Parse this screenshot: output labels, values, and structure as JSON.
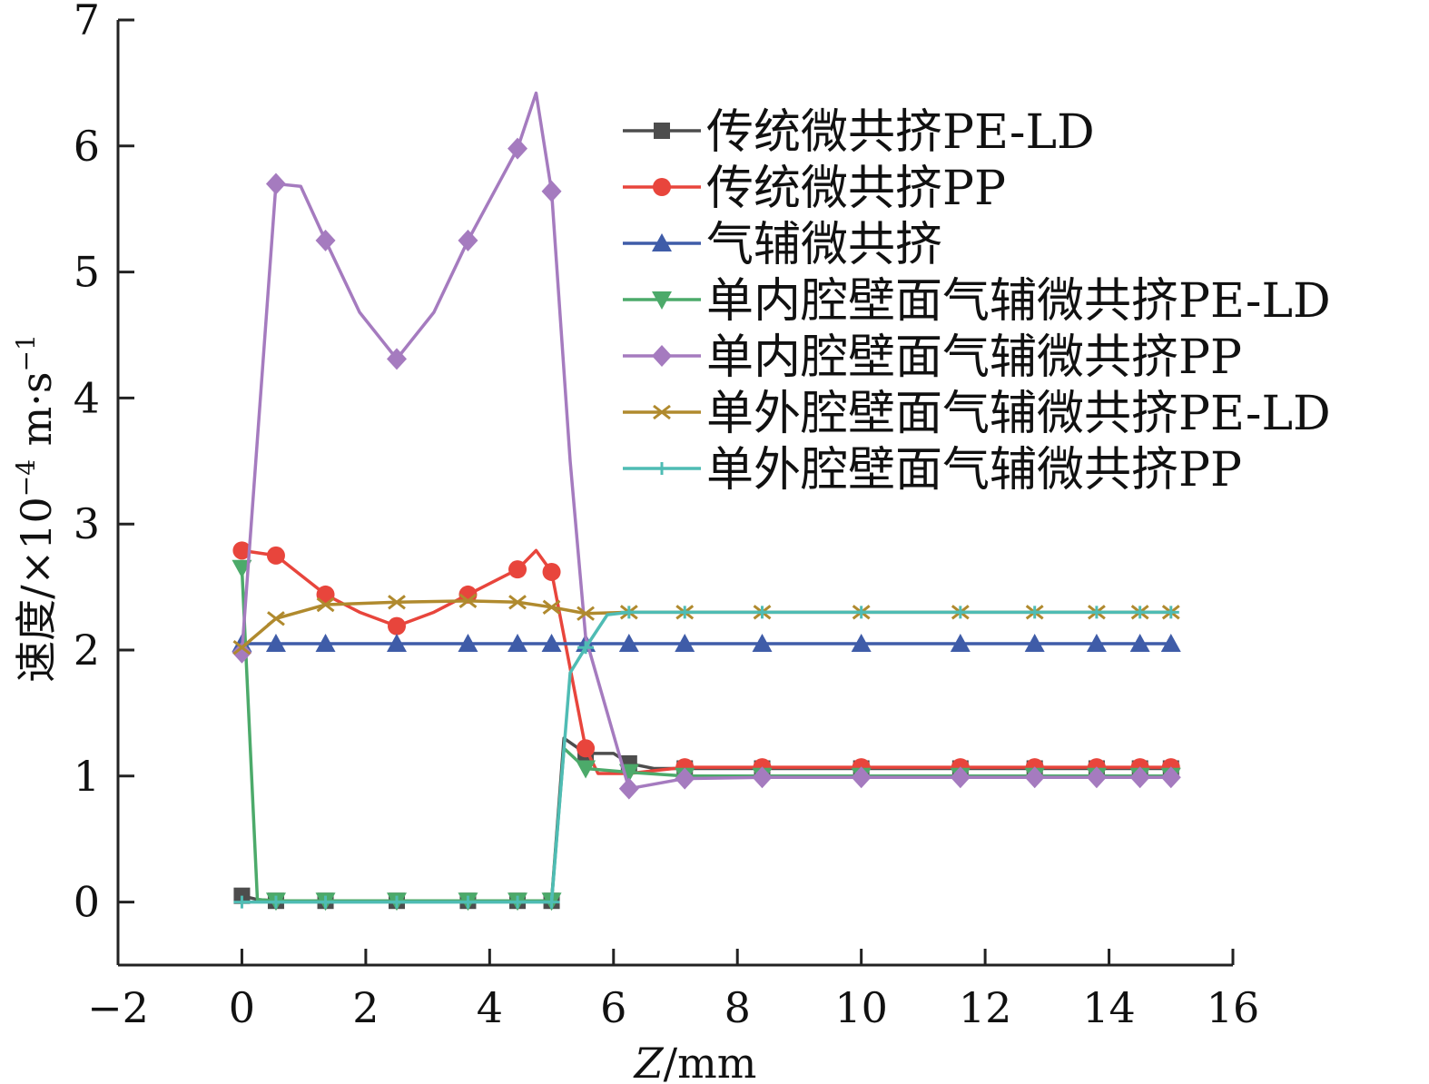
{
  "chart_data": {
    "type": "line",
    "title": "",
    "xlabel_italic": "Z",
    "xlabel_rest": "/mm",
    "ylabel_main": "速度/×10",
    "ylabel_sup1": "−4",
    "ylabel_mid": " m·s",
    "ylabel_sup2": "−1",
    "xlim": [
      -2,
      16
    ],
    "ylim": [
      -0.5,
      7
    ],
    "xticks": [
      -2,
      0,
      2,
      4,
      6,
      8,
      10,
      12,
      14,
      16
    ],
    "xtick_labels": [
      "−2",
      "0",
      "2",
      "4",
      "6",
      "8",
      "10",
      "12",
      "14",
      "16"
    ],
    "yticks": [
      0,
      1,
      2,
      3,
      4,
      5,
      6,
      7
    ],
    "ytick_labels": [
      "0",
      "1",
      "2",
      "3",
      "4",
      "5",
      "6",
      "7"
    ],
    "grid": false,
    "legend_position": "top-right",
    "series": [
      {
        "name": "传统微共挤PE-LD",
        "color": "#4d4d4d",
        "marker": "square",
        "x": [
          0,
          0.25,
          0.55,
          1.35,
          2.5,
          3.65,
          4.45,
          5.0,
          5.2,
          5.55,
          6.0,
          6.25,
          6.65,
          7.15,
          8.4,
          10.0,
          11.6,
          12.8,
          13.8,
          14.5,
          15.0
        ],
        "y": [
          0.05,
          0.02,
          0.01,
          0.01,
          0.01,
          0.01,
          0.01,
          0.01,
          1.3,
          1.18,
          1.18,
          1.1,
          1.06,
          1.06,
          1.06,
          1.06,
          1.06,
          1.06,
          1.06,
          1.06,
          1.06
        ],
        "marked": [
          true,
          false,
          true,
          true,
          true,
          true,
          true,
          true,
          false,
          true,
          false,
          true,
          false,
          true,
          true,
          true,
          true,
          true,
          true,
          true,
          true
        ]
      },
      {
        "name": "传统微共挤PP",
        "color": "#e8453c",
        "marker": "circle",
        "x": [
          0,
          0.55,
          1.35,
          1.9,
          2.5,
          3.1,
          3.65,
          4.45,
          4.75,
          5.0,
          5.55,
          5.75,
          6.25,
          7.15,
          8.4,
          10.0,
          11.6,
          12.8,
          13.8,
          14.5,
          15.0
        ],
        "y": [
          2.79,
          2.75,
          2.44,
          2.3,
          2.19,
          2.3,
          2.44,
          2.64,
          2.79,
          2.62,
          1.22,
          1.02,
          1.02,
          1.07,
          1.07,
          1.07,
          1.07,
          1.07,
          1.07,
          1.07,
          1.07
        ],
        "marked": [
          true,
          true,
          true,
          false,
          true,
          false,
          true,
          true,
          false,
          true,
          true,
          false,
          false,
          true,
          true,
          true,
          true,
          true,
          true,
          true,
          true
        ]
      },
      {
        "name": "气辅微共挤",
        "color": "#3f5ca8",
        "marker": "triangle-up",
        "x": [
          0,
          0.55,
          1.35,
          2.5,
          3.65,
          4.45,
          5.0,
          5.55,
          6.25,
          7.15,
          8.4,
          10.0,
          11.6,
          12.8,
          13.8,
          14.5,
          15.0
        ],
        "y": [
          2.05,
          2.05,
          2.05,
          2.05,
          2.05,
          2.05,
          2.05,
          2.05,
          2.05,
          2.05,
          2.05,
          2.05,
          2.05,
          2.05,
          2.05,
          2.05,
          2.05
        ],
        "marked": [
          true,
          true,
          true,
          true,
          true,
          true,
          true,
          true,
          true,
          true,
          true,
          true,
          true,
          true,
          true,
          true,
          true
        ]
      },
      {
        "name": "单内腔壁面气辅微共挤PE-LD",
        "color": "#4caa6a",
        "marker": "triangle-down",
        "x": [
          0,
          0.25,
          0.55,
          1.35,
          2.5,
          3.65,
          4.45,
          5.0,
          5.2,
          5.55,
          6.25,
          7.15,
          8.4,
          10.0,
          11.6,
          12.8,
          13.8,
          14.5,
          15.0
        ],
        "y": [
          2.65,
          0.02,
          0.01,
          0.01,
          0.01,
          0.01,
          0.01,
          0.01,
          1.22,
          1.06,
          1.03,
          1.0,
          1.0,
          1.0,
          1.0,
          1.0,
          1.0,
          1.0,
          1.0
        ],
        "marked": [
          true,
          false,
          true,
          true,
          true,
          true,
          true,
          true,
          false,
          true,
          true,
          true,
          true,
          true,
          true,
          true,
          true,
          true,
          true
        ]
      },
      {
        "name": "单内腔壁面气辅微共挤PP",
        "color": "#a57bbf",
        "marker": "diamond",
        "x": [
          0,
          0.55,
          0.95,
          1.35,
          1.9,
          2.5,
          3.1,
          3.65,
          4.45,
          4.75,
          5.0,
          5.3,
          5.55,
          6.25,
          7.15,
          8.4,
          10.0,
          11.6,
          12.8,
          13.8,
          14.5,
          15.0
        ],
        "y": [
          1.98,
          5.7,
          5.68,
          5.25,
          4.68,
          4.31,
          4.68,
          5.25,
          5.98,
          6.42,
          5.64,
          3.5,
          2.1,
          0.9,
          0.98,
          0.99,
          0.99,
          0.99,
          0.99,
          0.99,
          0.99,
          0.99
        ],
        "marked": [
          true,
          true,
          false,
          true,
          false,
          true,
          false,
          true,
          true,
          false,
          true,
          false,
          false,
          true,
          true,
          true,
          true,
          true,
          true,
          true,
          true,
          true
        ]
      },
      {
        "name": "单外腔壁面气辅微共挤PE-LD",
        "color": "#b08a2e",
        "marker": "x",
        "x": [
          0,
          0.55,
          1.35,
          2.5,
          3.65,
          4.45,
          5.0,
          5.55,
          6.25,
          7.15,
          8.4,
          10.0,
          11.6,
          12.8,
          13.8,
          14.5,
          15.0
        ],
        "y": [
          2.02,
          2.25,
          2.36,
          2.38,
          2.39,
          2.38,
          2.34,
          2.29,
          2.3,
          2.3,
          2.3,
          2.3,
          2.3,
          2.3,
          2.3,
          2.3,
          2.3
        ],
        "marked": [
          true,
          true,
          true,
          true,
          true,
          true,
          true,
          true,
          true,
          true,
          true,
          true,
          true,
          true,
          true,
          true,
          true
        ]
      },
      {
        "name": "单外腔壁面气辅微共挤PP",
        "color": "#4fbcb4",
        "marker": "plus",
        "x": [
          0,
          0.55,
          1.35,
          2.5,
          3.65,
          4.45,
          5.0,
          5.3,
          5.55,
          5.9,
          6.25,
          7.15,
          8.4,
          10.0,
          11.6,
          12.8,
          13.8,
          14.5,
          15.0
        ],
        "y": [
          0.0,
          0.0,
          0.0,
          0.0,
          0.0,
          0.0,
          0.0,
          1.82,
          2.02,
          2.28,
          2.3,
          2.3,
          2.3,
          2.3,
          2.3,
          2.3,
          2.3,
          2.3,
          2.3
        ],
        "marked": [
          true,
          true,
          true,
          true,
          true,
          true,
          true,
          false,
          true,
          false,
          true,
          true,
          true,
          true,
          true,
          true,
          true,
          true,
          true
        ]
      }
    ]
  }
}
